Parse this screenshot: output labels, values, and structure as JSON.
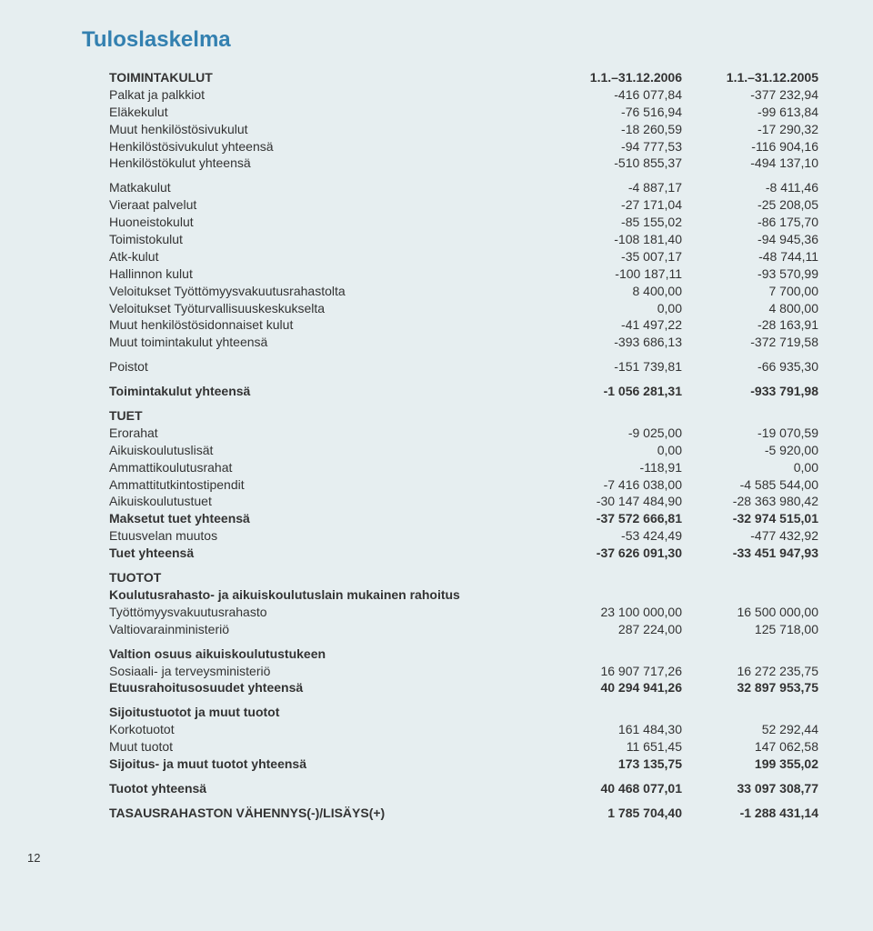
{
  "page_number": "12",
  "title": "Tuloslaskelma",
  "headings": {
    "main": "TOIMINTAKULUT",
    "col1": "1.1.–31.12.2006",
    "col2": "1.1.–31.12.2005"
  },
  "rows": [
    {
      "kind": "head"
    },
    {
      "kind": "r",
      "indent": true,
      "label": "Palkat ja palkkiot",
      "c1": "-416 077,84",
      "c2": "-377 232,94"
    },
    {
      "kind": "r",
      "indent": true,
      "label": "Eläkekulut",
      "c1": "-76 516,94",
      "c2": "-99 613,84"
    },
    {
      "kind": "r",
      "indent": true,
      "label": "Muut henkilöstösivukulut",
      "c1": "-18 260,59",
      "c2": "-17 290,32"
    },
    {
      "kind": "r",
      "indent": true,
      "label": "Henkilöstösivukulut yhteensä",
      "c1": "-94 777,53",
      "c2": "-116 904,16"
    },
    {
      "kind": "r",
      "indent": true,
      "label": "Henkilöstökulut yhteensä",
      "c1": "-510 855,37",
      "c2": "-494 137,10"
    },
    {
      "kind": "gap-sm"
    },
    {
      "kind": "r",
      "indent": true,
      "label": "Matkakulut",
      "c1": "-4 887,17",
      "c2": "-8 411,46"
    },
    {
      "kind": "r",
      "indent": true,
      "label": "Vieraat palvelut",
      "c1": "-27 171,04",
      "c2": "-25 208,05"
    },
    {
      "kind": "r",
      "indent": true,
      "label": "Huoneistokulut",
      "c1": "-85 155,02",
      "c2": "-86 175,70"
    },
    {
      "kind": "r",
      "indent": true,
      "label": "Toimistokulut",
      "c1": "-108 181,40",
      "c2": "-94 945,36"
    },
    {
      "kind": "r",
      "indent": true,
      "label": "Atk-kulut",
      "c1": "-35 007,17",
      "c2": "-48 744,11"
    },
    {
      "kind": "r",
      "indent": true,
      "label": "Hallinnon kulut",
      "c1": "-100 187,11",
      "c2": "-93 570,99"
    },
    {
      "kind": "r",
      "indent": true,
      "label": "Veloitukset Työttömyysvakuutusrahastolta",
      "c1": "8 400,00",
      "c2": "7 700,00"
    },
    {
      "kind": "r",
      "indent": true,
      "label": "Veloitukset Työturvallisuuskeskukselta",
      "c1": "0,00",
      "c2": "4 800,00"
    },
    {
      "kind": "r",
      "indent": true,
      "label": "Muut henkilöstösidonnaiset kulut",
      "c1": "-41 497,22",
      "c2": "-28 163,91"
    },
    {
      "kind": "r",
      "indent": true,
      "label": "Muut toimintakulut yhteensä",
      "c1": "-393 686,13",
      "c2": "-372 719,58"
    },
    {
      "kind": "gap-sm"
    },
    {
      "kind": "r",
      "indent": true,
      "label": "Poistot",
      "c1": "-151 739,81",
      "c2": "-66 935,30"
    },
    {
      "kind": "gap-sm"
    },
    {
      "kind": "r",
      "bold": true,
      "indent": true,
      "label": "Toimintakulut yhteensä",
      "c1": "-1 056 281,31",
      "c2": "-933 791,98"
    },
    {
      "kind": "gap-sm"
    },
    {
      "kind": "r",
      "bold": true,
      "indent": true,
      "label": "TUET"
    },
    {
      "kind": "r",
      "indent": true,
      "label": "Erorahat",
      "c1": "-9 025,00",
      "c2": "-19 070,59"
    },
    {
      "kind": "r",
      "indent": true,
      "label": "Aikuiskoulutuslisät",
      "c1": "0,00",
      "c2": "-5 920,00"
    },
    {
      "kind": "r",
      "indent": true,
      "label": "Ammattikoulutusrahat",
      "c1": "-118,91",
      "c2": "0,00"
    },
    {
      "kind": "r",
      "indent": true,
      "label": "Ammattitutkintostipendit",
      "c1": "-7 416 038,00",
      "c2": "-4 585 544,00"
    },
    {
      "kind": "r",
      "indent": true,
      "label": "Aikuiskoulutustuet",
      "c1": "-30 147 484,90",
      "c2": "-28 363 980,42"
    },
    {
      "kind": "r",
      "bold": true,
      "indent": true,
      "label": "Maksetut tuet yhteensä",
      "c1": "-37 572 666,81",
      "c2": "-32 974 515,01"
    },
    {
      "kind": "r",
      "indent": true,
      "label": "Etuusvelan muutos",
      "c1": "-53 424,49",
      "c2": "-477 432,92"
    },
    {
      "kind": "r",
      "bold": true,
      "indent": true,
      "label": "Tuet yhteensä",
      "c1": "-37 626 091,30",
      "c2": "-33 451 947,93"
    },
    {
      "kind": "gap-sm"
    },
    {
      "kind": "r",
      "bold": true,
      "indent": true,
      "label": "TUOTOT"
    },
    {
      "kind": "r",
      "bold": true,
      "indent": true,
      "label": "Koulutusrahasto- ja aikuiskoulutuslain mukainen rahoitus"
    },
    {
      "kind": "r",
      "indent": true,
      "label": "Työttömyysvakuutusrahasto",
      "c1": "23 100 000,00",
      "c2": "16 500 000,00"
    },
    {
      "kind": "r",
      "indent": true,
      "label": "Valtiovarainministeriö",
      "c1": "287 224,00",
      "c2": "125 718,00"
    },
    {
      "kind": "gap-sm"
    },
    {
      "kind": "r",
      "bold": true,
      "indent": true,
      "label": "Valtion osuus aikuiskoulutustukeen"
    },
    {
      "kind": "r",
      "indent": true,
      "label": "Sosiaali- ja terveysministeriö",
      "c1": "16 907 717,26",
      "c2": "16 272 235,75"
    },
    {
      "kind": "r",
      "bold": true,
      "indent": true,
      "label": "Etuusrahoitusosuudet yhteensä",
      "c1": "40 294 941,26",
      "c2": "32 897 953,75"
    },
    {
      "kind": "gap-sm"
    },
    {
      "kind": "r",
      "bold": true,
      "indent": true,
      "label": "Sijoitustuotot ja muut tuotot"
    },
    {
      "kind": "r",
      "indent": true,
      "label": "Korkotuotot",
      "c1": "161 484,30",
      "c2": "52 292,44"
    },
    {
      "kind": "r",
      "indent": true,
      "label": "Muut tuotot",
      "c1": "11 651,45",
      "c2": "147 062,58"
    },
    {
      "kind": "r",
      "bold": true,
      "indent": true,
      "label": "Sijoitus- ja muut tuotot yhteensä",
      "c1": "173 135,75",
      "c2": "199 355,02"
    },
    {
      "kind": "gap-sm"
    },
    {
      "kind": "r",
      "bold": true,
      "indent": true,
      "label": "Tuotot yhteensä",
      "c1": "40 468 077,01",
      "c2": "33 097 308,77"
    },
    {
      "kind": "gap-sm"
    },
    {
      "kind": "r",
      "bold": true,
      "indent": true,
      "label": "TASAUSRAHASTON VÄHENNYS(-)/LISÄYS(+)",
      "c1": "1 785 704,40",
      "c2": "-1 288 431,14"
    }
  ]
}
